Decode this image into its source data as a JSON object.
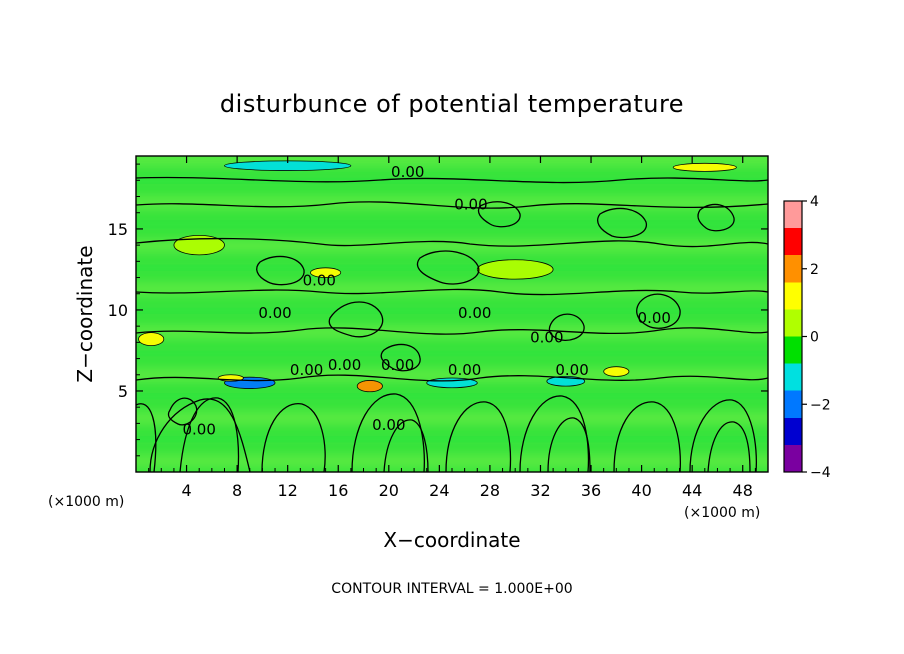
{
  "chart_data": {
    "type": "heatmap",
    "title": "disturbunce of potential temperature",
    "xlabel": "X−coordinate",
    "ylabel": "Z−coordinate",
    "x_unit": "(×1000 m)",
    "y_unit": "(×1000 m)",
    "footer": "CONTOUR INTERVAL = 1.000E+00",
    "xlim": [
      0,
      50
    ],
    "ylim": [
      0,
      19.5
    ],
    "x_ticks": [
      4,
      8,
      12,
      16,
      20,
      24,
      28,
      32,
      36,
      40,
      44,
      48
    ],
    "y_ticks": [
      5,
      10,
      15
    ],
    "colorbar": {
      "range": [
        -4,
        4
      ],
      "ticks": [
        -4,
        -2,
        0,
        2,
        4
      ],
      "tick_labels": [
        "−4",
        "−2",
        "0",
        "2",
        "4"
      ],
      "colors": [
        "#7a00a0",
        "#0000d0",
        "#0078ff",
        "#00e0e0",
        "#00e000",
        "#b0ff00",
        "#ffff00",
        "#ff9000",
        "#ff0000",
        "#ff9a9a"
      ]
    },
    "contour_labels": [
      {
        "text": "0.00",
        "x": 21.5,
        "y": 18.2
      },
      {
        "text": "0.00",
        "x": 26.5,
        "y": 16.2
      },
      {
        "text": "0.00",
        "x": 14.5,
        "y": 11.5
      },
      {
        "text": "0.00",
        "x": 11.0,
        "y": 9.5
      },
      {
        "text": "0.00",
        "x": 26.8,
        "y": 9.5
      },
      {
        "text": "0.00",
        "x": 32.5,
        "y": 8.0
      },
      {
        "text": "0.00",
        "x": 41.0,
        "y": 9.2
      },
      {
        "text": "0.00",
        "x": 13.5,
        "y": 6.0
      },
      {
        "text": "0.00",
        "x": 16.5,
        "y": 6.3
      },
      {
        "text": "0.00",
        "x": 20.7,
        "y": 6.3
      },
      {
        "text": "0.00",
        "x": 26.0,
        "y": 6.0
      },
      {
        "text": "0.00",
        "x": 34.5,
        "y": 6.0
      },
      {
        "text": "0.00",
        "x": 5.0,
        "y": 2.3
      },
      {
        "text": "0.00",
        "x": 20.0,
        "y": 2.6
      }
    ],
    "anomalies": [
      {
        "x": 9.0,
        "y": 5.5,
        "rx": 2.0,
        "ry": 0.35,
        "value": -1.7
      },
      {
        "x": 25.0,
        "y": 5.5,
        "rx": 2.0,
        "ry": 0.3,
        "value": -1.3
      },
      {
        "x": 34.0,
        "y": 5.6,
        "rx": 1.5,
        "ry": 0.3,
        "value": -1.3
      },
      {
        "x": 12.0,
        "y": 18.9,
        "rx": 5.0,
        "ry": 0.3,
        "value": -1.2
      },
      {
        "x": 18.5,
        "y": 5.3,
        "rx": 1.0,
        "ry": 0.35,
        "value": 1.6
      },
      {
        "x": 1.2,
        "y": 8.2,
        "rx": 1.0,
        "ry": 0.4,
        "value": 1.4
      },
      {
        "x": 45.0,
        "y": 18.8,
        "rx": 2.5,
        "ry": 0.25,
        "value": 1.4
      },
      {
        "x": 7.5,
        "y": 5.8,
        "rx": 1.0,
        "ry": 0.2,
        "value": 1.2
      },
      {
        "x": 15.0,
        "y": 12.3,
        "rx": 1.2,
        "ry": 0.3,
        "value": 0.9
      },
      {
        "x": 38.0,
        "y": 6.2,
        "rx": 1.0,
        "ry": 0.3,
        "value": 0.9
      },
      {
        "x": 5.0,
        "y": 14.0,
        "rx": 2.0,
        "ry": 0.6,
        "value": 0.4
      },
      {
        "x": 30.0,
        "y": 12.5,
        "rx": 3.0,
        "ry": 0.6,
        "value": 0.4
      }
    ]
  }
}
